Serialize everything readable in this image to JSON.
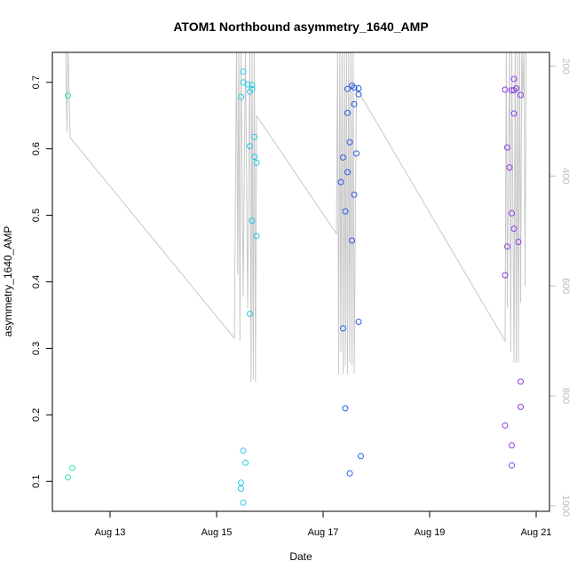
{
  "chart_data": {
    "type": "scatter",
    "title": "ATOM1 Northbound asymmetry_1640_AMP",
    "xlabel": "Date",
    "ylabel": "asymmetry_1640_AMP",
    "xlim": [
      "2022-08-11T22:00",
      "2022-08-21T06:00"
    ],
    "ylim": [
      0.055,
      0.745
    ],
    "x_ticks": [
      {
        "at": "2022-08-13T00:00",
        "label": "Aug 13"
      },
      {
        "at": "2022-08-15T00:00",
        "label": "Aug 15"
      },
      {
        "at": "2022-08-17T00:00",
        "label": "Aug 17"
      },
      {
        "at": "2022-08-19T00:00",
        "label": "Aug 19"
      },
      {
        "at": "2022-08-21T00:00",
        "label": "Aug 21"
      }
    ],
    "y_ticks": [
      0.1,
      0.2,
      0.3,
      0.4,
      0.5,
      0.6,
      0.7
    ],
    "right_axis": {
      "ticks": [
        200,
        400,
        600,
        800,
        1000
      ],
      "range_top": 175,
      "range_bottom": 1010,
      "color": "#bdbdbd"
    },
    "grid": false,
    "legend": "none",
    "line_series": {
      "color": "#c8c8c8",
      "points": [
        [
          "2022-08-12T04:00",
          160
        ],
        [
          "2022-08-12T04:30",
          320
        ],
        [
          "2022-08-12T05:00",
          160
        ],
        [
          "2022-08-12T06:00",
          330
        ],
        [
          "2022-08-15T08:00",
          695
        ],
        [
          "2022-08-15T09:00",
          160
        ],
        [
          "2022-08-15T09:30",
          580
        ],
        [
          "2022-08-15T10:00",
          160
        ],
        [
          "2022-08-15T10:30",
          700
        ],
        [
          "2022-08-15T11:00",
          160
        ],
        [
          "2022-08-15T12:00",
          620
        ],
        [
          "2022-08-15T13:00",
          160
        ],
        [
          "2022-08-15T14:00",
          640
        ],
        [
          "2022-08-15T15:00",
          160
        ],
        [
          "2022-08-15T15:30",
          775
        ],
        [
          "2022-08-15T16:00",
          160
        ],
        [
          "2022-08-15T16:30",
          770
        ],
        [
          "2022-08-15T17:00",
          160
        ],
        [
          "2022-08-15T17:30",
          775
        ],
        [
          "2022-08-15T18:00",
          290
        ],
        [
          "2022-08-17T06:00",
          505
        ],
        [
          "2022-08-17T06:30",
          160
        ],
        [
          "2022-08-17T07:00",
          760
        ],
        [
          "2022-08-17T07:30",
          160
        ],
        [
          "2022-08-17T08:00",
          720
        ],
        [
          "2022-08-17T08:30",
          160
        ],
        [
          "2022-08-17T09:00",
          760
        ],
        [
          "2022-08-17T09:30",
          160
        ],
        [
          "2022-08-17T10:00",
          745
        ],
        [
          "2022-08-17T10:30",
          160
        ],
        [
          "2022-08-17T11:00",
          760
        ],
        [
          "2022-08-17T11:30",
          160
        ],
        [
          "2022-08-17T12:00",
          740
        ],
        [
          "2022-08-17T12:30",
          160
        ],
        [
          "2022-08-17T13:00",
          745
        ],
        [
          "2022-08-17T13:30",
          160
        ],
        [
          "2022-08-17T14:00",
          760
        ],
        [
          "2022-08-17T15:00",
          240
        ],
        [
          "2022-08-20T10:00",
          700
        ],
        [
          "2022-08-20T10:30",
          160
        ],
        [
          "2022-08-20T11:00",
          640
        ],
        [
          "2022-08-20T12:00",
          160
        ],
        [
          "2022-08-20T12:30",
          720
        ],
        [
          "2022-08-20T13:00",
          160
        ],
        [
          "2022-08-20T14:00",
          740
        ],
        [
          "2022-08-20T14:30",
          160
        ],
        [
          "2022-08-20T15:00",
          740
        ],
        [
          "2022-08-20T15:30",
          160
        ],
        [
          "2022-08-20T16:00",
          740
        ],
        [
          "2022-08-20T16:30",
          160
        ],
        [
          "2022-08-20T17:00",
          630
        ],
        [
          "2022-08-20T17:30",
          160
        ],
        [
          "2022-08-20T18:00",
          260
        ],
        [
          "2022-08-20T18:30",
          160
        ],
        [
          "2022-08-20T19:00",
          600
        ],
        [
          "2022-08-20T19:30",
          160
        ]
      ]
    },
    "scatter_points": [
      {
        "x": "2022-08-12T05:00",
        "y": 0.68,
        "color": "#33e0b8"
      },
      {
        "x": "2022-08-12T05:00",
        "y": 0.106,
        "color": "#33e0b8"
      },
      {
        "x": "2022-08-12T07:00",
        "y": 0.12,
        "color": "#33e0b8"
      },
      {
        "x": "2022-08-15T11:00",
        "y": 0.678,
        "color": "#27c8e6"
      },
      {
        "x": "2022-08-15T11:00",
        "y": 0.098,
        "color": "#27c8e6"
      },
      {
        "x": "2022-08-15T11:00",
        "y": 0.089,
        "color": "#27c8e6"
      },
      {
        "x": "2022-08-15T12:00",
        "y": 0.7,
        "color": "#27c8e6"
      },
      {
        "x": "2022-08-15T12:00",
        "y": 0.716,
        "color": "#27c8e6"
      },
      {
        "x": "2022-08-15T12:00",
        "y": 0.146,
        "color": "#27c8e6"
      },
      {
        "x": "2022-08-15T12:00",
        "y": 0.068,
        "color": "#27c8e6"
      },
      {
        "x": "2022-08-15T13:00",
        "y": 0.128,
        "color": "#27c8e6"
      },
      {
        "x": "2022-08-15T14:00",
        "y": 0.697,
        "color": "#27c8e6"
      },
      {
        "x": "2022-08-15T15:00",
        "y": 0.604,
        "color": "#27c8e6"
      },
      {
        "x": "2022-08-15T15:00",
        "y": 0.686,
        "color": "#27c8e6"
      },
      {
        "x": "2022-08-15T15:00",
        "y": 0.352,
        "color": "#27c8e6"
      },
      {
        "x": "2022-08-15T16:00",
        "y": 0.696,
        "color": "#27c8e6"
      },
      {
        "x": "2022-08-15T16:00",
        "y": 0.69,
        "color": "#27c8e6"
      },
      {
        "x": "2022-08-15T16:00",
        "y": 0.492,
        "color": "#27c8e6"
      },
      {
        "x": "2022-08-15T17:00",
        "y": 0.618,
        "color": "#27c8e6"
      },
      {
        "x": "2022-08-15T17:00",
        "y": 0.588,
        "color": "#27c8e6"
      },
      {
        "x": "2022-08-15T18:00",
        "y": 0.579,
        "color": "#27c8e6"
      },
      {
        "x": "2022-08-15T18:00",
        "y": 0.469,
        "color": "#27c8e6"
      },
      {
        "x": "2022-08-17T08:00",
        "y": 0.55,
        "color": "#2a5ce6"
      },
      {
        "x": "2022-08-17T09:00",
        "y": 0.587,
        "color": "#2a5ce6"
      },
      {
        "x": "2022-08-17T09:00",
        "y": 0.33,
        "color": "#2a5ce6"
      },
      {
        "x": "2022-08-17T10:00",
        "y": 0.506,
        "color": "#2a5ce6"
      },
      {
        "x": "2022-08-17T10:00",
        "y": 0.21,
        "color": "#2a5ce6"
      },
      {
        "x": "2022-08-17T11:00",
        "y": 0.69,
        "color": "#2a5ce6"
      },
      {
        "x": "2022-08-17T11:00",
        "y": 0.654,
        "color": "#2a5ce6"
      },
      {
        "x": "2022-08-17T11:00",
        "y": 0.565,
        "color": "#2a5ce6"
      },
      {
        "x": "2022-08-17T12:00",
        "y": 0.61,
        "color": "#2a5ce6"
      },
      {
        "x": "2022-08-17T12:00",
        "y": 0.112,
        "color": "#2a5ce6"
      },
      {
        "x": "2022-08-17T13:00",
        "y": 0.695,
        "color": "#2a5ce6"
      },
      {
        "x": "2022-08-17T13:00",
        "y": 0.462,
        "color": "#2a5ce6"
      },
      {
        "x": "2022-08-17T14:00",
        "y": 0.692,
        "color": "#2a5ce6"
      },
      {
        "x": "2022-08-17T14:00",
        "y": 0.667,
        "color": "#2a5ce6"
      },
      {
        "x": "2022-08-17T14:00",
        "y": 0.531,
        "color": "#2a5ce6"
      },
      {
        "x": "2022-08-17T15:00",
        "y": 0.593,
        "color": "#2a5ce6"
      },
      {
        "x": "2022-08-17T16:00",
        "y": 0.691,
        "color": "#2a5ce6"
      },
      {
        "x": "2022-08-17T16:00",
        "y": 0.682,
        "color": "#2a5ce6"
      },
      {
        "x": "2022-08-17T16:00",
        "y": 0.34,
        "color": "#2a5ce6"
      },
      {
        "x": "2022-08-17T17:00",
        "y": 0.138,
        "color": "#2a5ce6"
      },
      {
        "x": "2022-08-20T10:00",
        "y": 0.689,
        "color": "#8a3ce6"
      },
      {
        "x": "2022-08-20T10:00",
        "y": 0.41,
        "color": "#8a3ce6"
      },
      {
        "x": "2022-08-20T10:00",
        "y": 0.184,
        "color": "#8a3ce6"
      },
      {
        "x": "2022-08-20T11:00",
        "y": 0.602,
        "color": "#8a3ce6"
      },
      {
        "x": "2022-08-20T11:00",
        "y": 0.453,
        "color": "#8a3ce6"
      },
      {
        "x": "2022-08-20T12:00",
        "y": 0.572,
        "color": "#8a3ce6"
      },
      {
        "x": "2022-08-20T13:00",
        "y": 0.688,
        "color": "#8a3ce6"
      },
      {
        "x": "2022-08-20T13:00",
        "y": 0.503,
        "color": "#8a3ce6"
      },
      {
        "x": "2022-08-20T13:00",
        "y": 0.154,
        "color": "#8a3ce6"
      },
      {
        "x": "2022-08-20T13:00",
        "y": 0.124,
        "color": "#8a3ce6"
      },
      {
        "x": "2022-08-20T14:00",
        "y": 0.705,
        "color": "#8a3ce6"
      },
      {
        "x": "2022-08-20T14:00",
        "y": 0.688,
        "color": "#8a3ce6"
      },
      {
        "x": "2022-08-20T14:00",
        "y": 0.653,
        "color": "#8a3ce6"
      },
      {
        "x": "2022-08-20T14:00",
        "y": 0.48,
        "color": "#8a3ce6"
      },
      {
        "x": "2022-08-20T15:00",
        "y": 0.691,
        "color": "#8a3ce6"
      },
      {
        "x": "2022-08-20T16:00",
        "y": 0.46,
        "color": "#8a3ce6"
      },
      {
        "x": "2022-08-20T17:00",
        "y": 0.681,
        "color": "#8a3ce6"
      },
      {
        "x": "2022-08-20T17:00",
        "y": 0.25,
        "color": "#8a3ce6"
      },
      {
        "x": "2022-08-20T17:00",
        "y": 0.212,
        "color": "#8a3ce6"
      }
    ]
  }
}
